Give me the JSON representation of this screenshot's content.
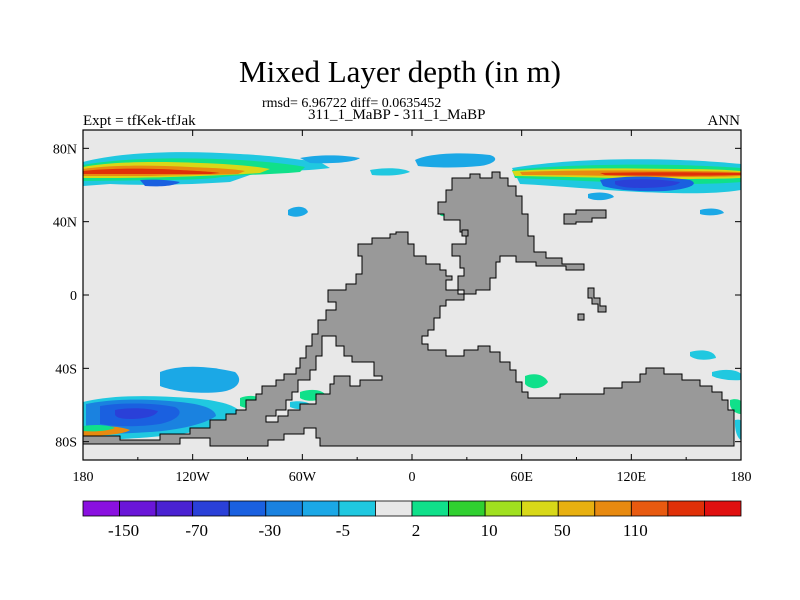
{
  "chart_data": {
    "type": "heatmap",
    "title": "Mixed Layer depth (in m)",
    "rmsd_text": "rmsd= 6.96722 diff= 0.0635452",
    "subtitle": "311_1_MaBP - 311_1_MaBP",
    "left_label": "Expt = tfKek-tfJak",
    "right_label": "ANN",
    "x_ticks": [
      "180",
      "120W",
      "60W",
      "0",
      "60E",
      "120E",
      "180"
    ],
    "y_ticks": [
      "80N",
      "40N",
      "0",
      "40S",
      "80S"
    ],
    "xlim": [
      -180,
      180
    ],
    "ylim": [
      -90,
      90
    ],
    "colorbar": {
      "colors": [
        "#8a10e0",
        "#6a16d8",
        "#4a22d2",
        "#2a40d8",
        "#1a60e0",
        "#1a82e0",
        "#1ba8e6",
        "#20c8e0",
        "#e8e8e8",
        "#10e08a",
        "#30d030",
        "#a0e020",
        "#d8d818",
        "#e8b010",
        "#e88a10",
        "#e85a10",
        "#e03008",
        "#e01010"
      ],
      "labels": [
        "-150",
        "-70",
        "-30",
        "-5",
        "2",
        "10",
        "50",
        "110"
      ]
    },
    "land_color": "#999999",
    "ocean_background": "#e8e8e8"
  }
}
